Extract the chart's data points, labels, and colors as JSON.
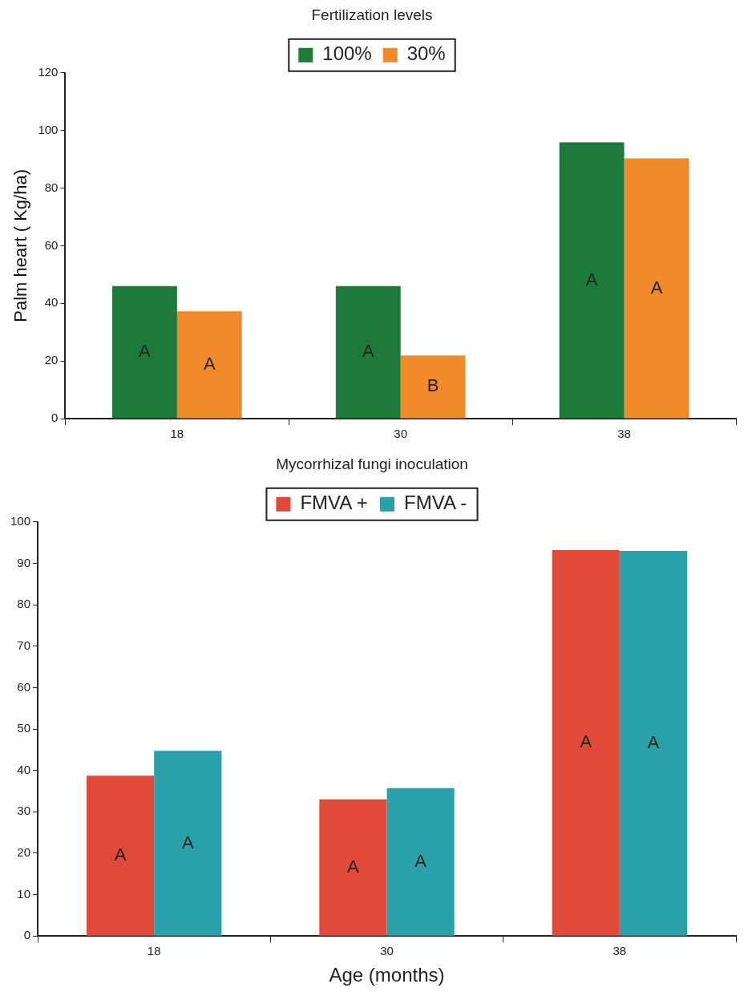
{
  "chart_data": [
    {
      "type": "bar",
      "legend_title": "Fertilization levels",
      "ylabel": "Palm heart ( Kg/ha)",
      "categories": [
        "18",
        "30",
        "38"
      ],
      "series": [
        {
          "name": "100%",
          "color": "#1e7a3a",
          "values": [
            46.0,
            46.0,
            95.9
          ],
          "value_labels": [
            "A",
            "A",
            "A"
          ]
        },
        {
          "name": "30%",
          "color": "#f08a2a",
          "values": [
            37.2,
            21.9,
            90.3
          ],
          "value_labels": [
            "A",
            "B",
            "A"
          ]
        }
      ],
      "ylim": [
        0,
        120
      ],
      "yticks": [
        0,
        20,
        40,
        60,
        80,
        100,
        120
      ],
      "grid": false,
      "legend": "top"
    },
    {
      "type": "bar",
      "legend_title": "Mycorrhizal fungi inoculation",
      "xlabel": "Age (months)",
      "categories": [
        "18",
        "30",
        "38"
      ],
      "series": [
        {
          "name": "FMVA +",
          "color": "#e04a3a",
          "values": [
            38.7,
            33.0,
            93.2
          ],
          "value_labels": [
            "A",
            "A",
            "A"
          ]
        },
        {
          "name": "FMVA -",
          "color": "#2aa0a8",
          "values": [
            44.7,
            35.7,
            93.0
          ],
          "value_labels": [
            "A",
            "A",
            "A"
          ]
        }
      ],
      "ylim": [
        0,
        100
      ],
      "yticks": [
        0,
        10,
        20,
        30,
        40,
        50,
        60,
        70,
        80,
        90,
        100
      ],
      "grid": false,
      "legend": "top"
    }
  ]
}
